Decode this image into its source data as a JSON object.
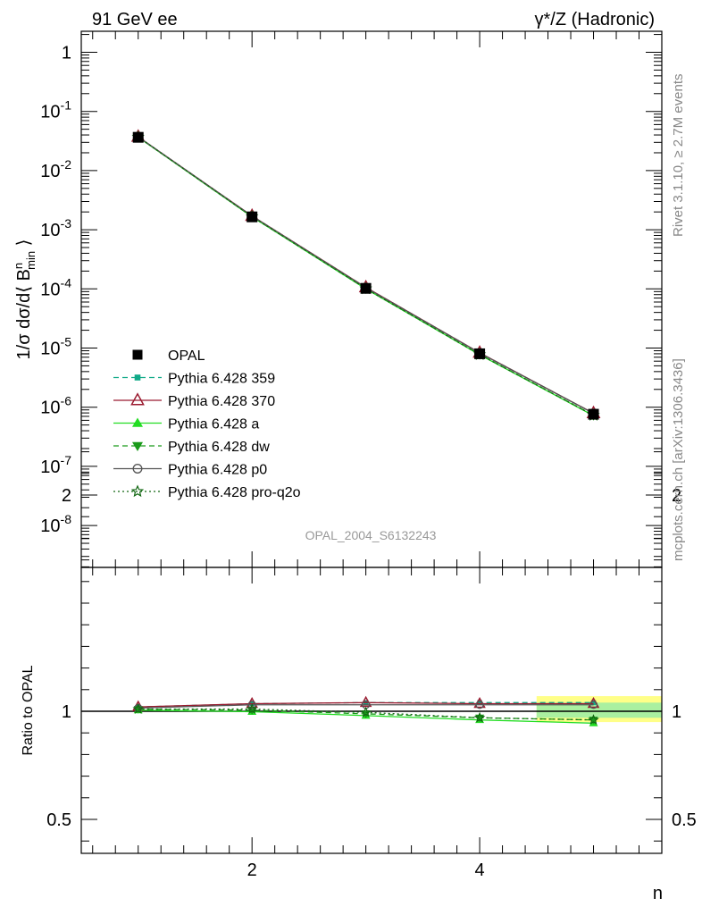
{
  "header": {
    "left_title": "91 GeV ee",
    "right_title": "γ*/Z (Hadronic)"
  },
  "side_labels": {
    "rivet": "Rivet 3.1.10, ≥ 2.7M events",
    "mcplots": "mcplots.cern.ch [arXiv:1306.3436]"
  },
  "watermark": "OPAL_2004_S6132243",
  "chart_data": [
    {
      "type": "line",
      "panel": "main",
      "xlabel": "",
      "ylabel": "1/σ dσ/d⟨ B^n_min ⟩",
      "ylabel_parts": {
        "prefix": "1/σ dσ/d⟨ B",
        "sup": "n",
        "sub": "min",
        "suffix": " ⟩"
      },
      "ylog": true,
      "xlim": [
        0.5,
        5.6
      ],
      "ylim": [
        2e-09,
        2.5
      ],
      "y_tick_labels": [
        "1",
        "10^-1",
        "10^-2",
        "10^-3",
        "10^-4",
        "10^-5",
        "10^-6",
        "10^-7",
        "10^-8"
      ],
      "x": [
        1,
        2,
        3,
        4,
        5
      ],
      "legend_position": "lower-left",
      "series": [
        {
          "name": "OPAL",
          "values": [
            0.0365,
            0.00165,
            0.000102,
            8e-06,
            7.6e-07
          ],
          "color": "#000000",
          "marker": "filled-square",
          "line": "none"
        },
        {
          "name": "Pythia 6.428 359",
          "values": [
            0.0372,
            0.00171,
            0.000106,
            8.3e-06,
            7.9e-07
          ],
          "color": "#11aa88",
          "marker": "filled-small-square",
          "line": "dashed"
        },
        {
          "name": "Pythia 6.428 370",
          "values": [
            0.0372,
            0.00171,
            0.000106,
            8.3e-06,
            7.9e-07
          ],
          "color": "#9b1b30",
          "marker": "open-triangle",
          "line": "solid"
        },
        {
          "name": "Pythia 6.428 a",
          "values": [
            0.0366,
            0.00165,
            0.0001,
            7.7e-06,
            7.2e-07
          ],
          "color": "#22dd22",
          "marker": "filled-triangle",
          "line": "solid"
        },
        {
          "name": "Pythia 6.428 dw",
          "values": [
            0.0368,
            0.00166,
            0.000101,
            7.8e-06,
            7.3e-07
          ],
          "color": "#1a9a1a",
          "marker": "filled-triangle-down",
          "line": "dashed"
        },
        {
          "name": "Pythia 6.428 p0",
          "values": [
            0.0371,
            0.0017,
            0.000105,
            8.25e-06,
            7.85e-07
          ],
          "color": "#555555",
          "marker": "open-circle",
          "line": "solid"
        },
        {
          "name": "Pythia 6.428 pro-q2o",
          "values": [
            0.0369,
            0.00167,
            0.000101,
            7.75e-06,
            7.3e-07
          ],
          "color": "#116611",
          "marker": "open-star",
          "line": "dotted"
        }
      ]
    },
    {
      "type": "line",
      "panel": "ratio",
      "xlabel": "n",
      "ylabel": "Ratio to OPAL",
      "xlim": [
        0.5,
        5.6
      ],
      "ylim": [
        0.34,
        2.3
      ],
      "x_tick_labels": [
        "2",
        "4"
      ],
      "y_tick_labels": [
        "0.5",
        "1",
        "2"
      ],
      "x": [
        1,
        2,
        3,
        4,
        5
      ],
      "reference_band": {
        "x": [
          4.5,
          5.6
        ],
        "yellow": [
          0.95,
          1.07
        ],
        "green": [
          0.97,
          1.04
        ]
      },
      "series": [
        {
          "name": "Pythia 6.428 359",
          "values": [
            1.02,
            1.035,
            1.04,
            1.04,
            1.04
          ]
        },
        {
          "name": "Pythia 6.428 370",
          "values": [
            1.02,
            1.035,
            1.04,
            1.035,
            1.035
          ]
        },
        {
          "name": "Pythia 6.428 a",
          "values": [
            1.005,
            0.998,
            0.98,
            0.96,
            0.945
          ]
        },
        {
          "name": "Pythia 6.428 dw",
          "values": [
            1.01,
            1.005,
            0.988,
            0.97,
            0.96
          ]
        },
        {
          "name": "Pythia 6.428 p0",
          "values": [
            1.015,
            1.03,
            1.03,
            1.03,
            1.03
          ]
        },
        {
          "name": "Pythia 6.428 pro-q2o",
          "values": [
            1.01,
            1.01,
            0.995,
            0.97,
            0.96
          ]
        }
      ]
    }
  ]
}
